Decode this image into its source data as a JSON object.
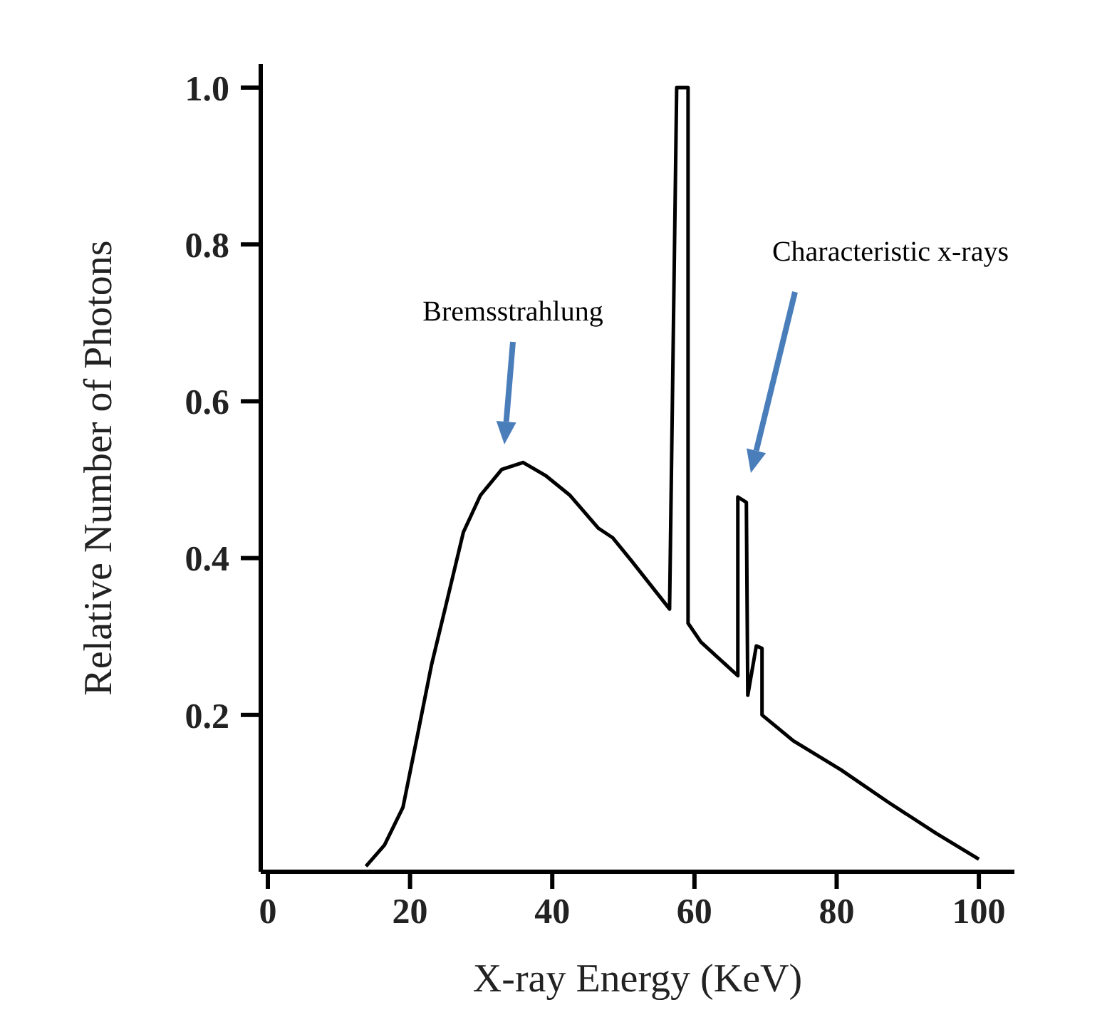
{
  "chart_data": {
    "type": "line",
    "xlabel": "X-ray Energy (KeV)",
    "ylabel": "Relative Number of Photons",
    "x": [
      13.8,
      16.4,
      19.0,
      21.0,
      23.0,
      25.1,
      27.5,
      29.9,
      32.9,
      35.9,
      39.1,
      42.5,
      46.5,
      48.5,
      51.1,
      56.5,
      57.5,
      59.1,
      59.1,
      60.9,
      66.1,
      66.1,
      67.3,
      67.5,
      68.7,
      69.5,
      69.5,
      73.9,
      80.6,
      87.2,
      94.0,
      100.0
    ],
    "values": [
      0.007,
      0.034,
      0.082,
      0.172,
      0.263,
      0.342,
      0.433,
      0.48,
      0.513,
      0.522,
      0.505,
      0.48,
      0.438,
      0.426,
      0.397,
      0.335,
      1.0,
      1.0,
      0.317,
      0.293,
      0.25,
      0.478,
      0.471,
      0.225,
      0.288,
      0.285,
      0.2,
      0.167,
      0.13,
      0.089,
      0.049,
      0.016
    ],
    "color": "#000000",
    "marker": "none",
    "line_style": "solid",
    "grid": false,
    "legend": false,
    "xlim": [
      -1,
      105
    ],
    "xticks": [
      0,
      20,
      40,
      60,
      80,
      100
    ],
    "ylim": [
      0,
      1.03
    ],
    "yticks": [
      0.2,
      0.4,
      0.6,
      0.8,
      {
        "value": 1,
        "label": "1.0"
      }
    ],
    "annotations": [
      "Bremsstrahlung",
      "Characteristic x-rays"
    ]
  }
}
